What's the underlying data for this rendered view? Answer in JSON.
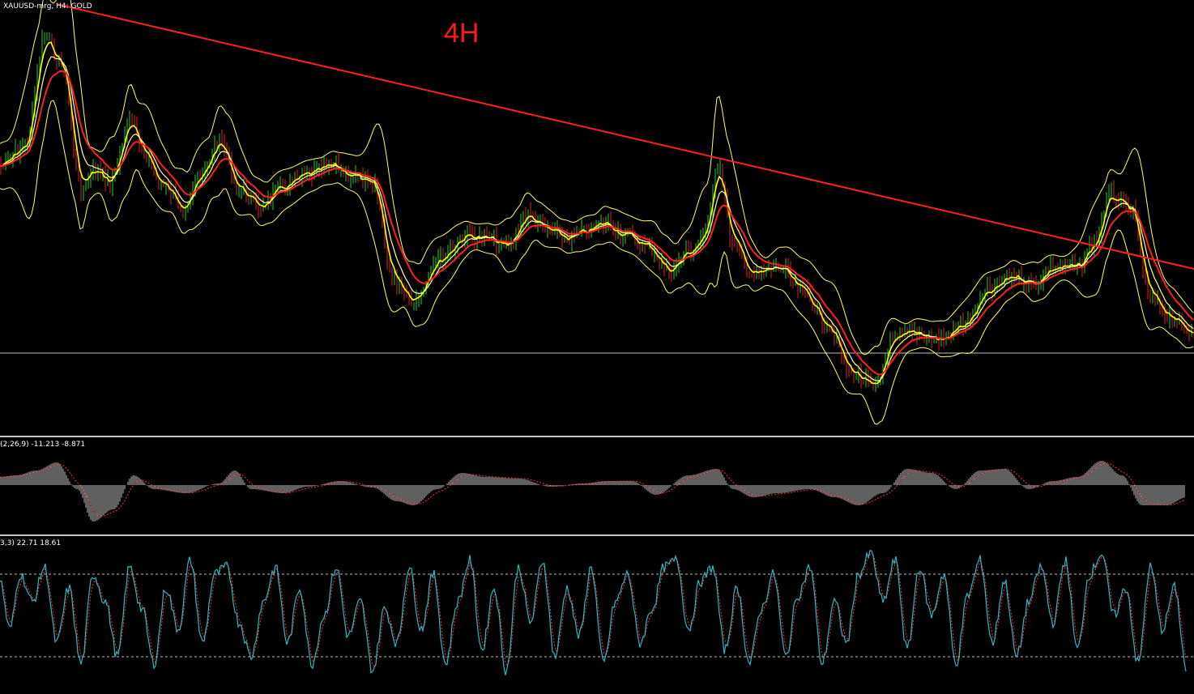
{
  "window": {
    "symbol_label": "XAUUSD-mrg, H4: GOLD"
  },
  "annotation": {
    "timeframe": "4H"
  },
  "colors": {
    "background": "#000000",
    "trendline": "#ff2020",
    "bands": "#ffff66",
    "fast_ma": "#ffff00",
    "mid_ma": "#ffffaa",
    "slow_ma": "#ff2020",
    "bull_bar": "#22cc22",
    "bear_bar": "#dd2222",
    "macd_hist": "#c0c0c0",
    "macd_signal": "#ff3333",
    "stoch_main": "#33b5c8",
    "stoch_signal": "#ff3333",
    "levels": "#c0c0c0"
  },
  "macd": {
    "label": "(2,26,9) -11.213 -8.871"
  },
  "stochastic": {
    "label": "3,3) 22.71 18.61"
  },
  "chart_data": [
    {
      "type": "line",
      "name": "price",
      "x": [
        0,
        30,
        55,
        75,
        100,
        115,
        135,
        160,
        175,
        200,
        225,
        245,
        270,
        295,
        320,
        350,
        380,
        410,
        430,
        460,
        485,
        510,
        540,
        575,
        600,
        625,
        650,
        675,
        700,
        725,
        745,
        770,
        800,
        825,
        850,
        870,
        885,
        905,
        930,
        960,
        990,
        1020,
        1050,
        1080,
        1100,
        1130,
        1160,
        1190,
        1220,
        1250,
        1275,
        1300,
        1330,
        1350,
        1370,
        1395,
        1420,
        1445,
        1465
      ],
      "values": [
        205,
        180,
        45,
        80,
        235,
        210,
        225,
        150,
        185,
        230,
        255,
        220,
        175,
        235,
        255,
        230,
        215,
        205,
        215,
        230,
        345,
        370,
        320,
        290,
        295,
        305,
        265,
        285,
        295,
        285,
        275,
        290,
        305,
        335,
        310,
        290,
        200,
        305,
        340,
        330,
        360,
        400,
        460,
        480,
        420,
        410,
        420,
        400,
        360,
        340,
        350,
        330,
        330,
        300,
        240,
        260,
        370,
        390,
        410
      ]
    },
    {
      "type": "line",
      "name": "trendline",
      "x": [
        70,
        1474
      ],
      "values": [
        5,
        332
      ]
    },
    {
      "type": "bar",
      "name": "macd",
      "label": "(2,26,9) -11.213 -8.871",
      "x": [
        0,
        20,
        45,
        70,
        95,
        115,
        140,
        165,
        190,
        230,
        270,
        290,
        310,
        350,
        380,
        420,
        460,
        490,
        510,
        540,
        570,
        600,
        640,
        680,
        720,
        750,
        780,
        810,
        850,
        885,
        905,
        930,
        960,
        1000,
        1030,
        1060,
        1090,
        1120,
        1150,
        1180,
        1210,
        1240,
        1270,
        1300,
        1330,
        1360,
        1385,
        1410,
        1440,
        1465
      ],
      "values": [
        10,
        12,
        18,
        28,
        -5,
        -45,
        -30,
        12,
        -5,
        -10,
        2,
        18,
        -5,
        -10,
        -2,
        5,
        -3,
        -20,
        -25,
        -5,
        15,
        10,
        8,
        -2,
        2,
        5,
        5,
        -12,
        12,
        20,
        -5,
        -15,
        -10,
        -5,
        -15,
        -25,
        -10,
        20,
        15,
        -5,
        18,
        20,
        -5,
        5,
        10,
        30,
        12,
        -25,
        -25,
        -15
      ]
    },
    {
      "type": "line",
      "name": "stochastic",
      "label": "3,3) 22.71 18.61",
      "ylim": [
        0,
        100
      ],
      "x": [
        0,
        12,
        25,
        40,
        55,
        70,
        85,
        100,
        115,
        130,
        145,
        160,
        175,
        190,
        205,
        220,
        235,
        250,
        265,
        280,
        295,
        310,
        325,
        340,
        355,
        370,
        385,
        400,
        415,
        430,
        445,
        460,
        475,
        490,
        505,
        520,
        535,
        550,
        565,
        580,
        595,
        610,
        625,
        640,
        655,
        670,
        685,
        700,
        715,
        730,
        745,
        760,
        775,
        790,
        805,
        820,
        835,
        850,
        865,
        880,
        895,
        910,
        925,
        940,
        955,
        970,
        985,
        1000,
        1015,
        1030,
        1045,
        1060,
        1075,
        1090,
        1105,
        1120,
        1135,
        1150,
        1165,
        1180,
        1195,
        1210,
        1225,
        1240,
        1255,
        1270,
        1285,
        1300,
        1315,
        1330,
        1345,
        1360,
        1375,
        1390,
        1405,
        1420,
        1435,
        1450,
        1465
      ],
      "values": [
        75,
        40,
        80,
        60,
        85,
        30,
        70,
        15,
        80,
        60,
        20,
        85,
        55,
        15,
        70,
        40,
        90,
        30,
        80,
        85,
        45,
        20,
        60,
        85,
        30,
        70,
        15,
        50,
        85,
        35,
        60,
        10,
        55,
        30,
        85,
        40,
        80,
        15,
        60,
        90,
        25,
        70,
        10,
        85,
        45,
        90,
        20,
        70,
        35,
        85,
        15,
        60,
        80,
        30,
        55,
        85,
        90,
        40,
        75,
        85,
        25,
        70,
        15,
        55,
        80,
        20,
        65,
        85,
        15,
        60,
        30,
        80,
        95,
        60,
        90,
        25,
        85,
        50,
        80,
        15,
        65,
        90,
        30,
        75,
        20,
        60,
        85,
        45,
        90,
        25,
        80,
        95,
        50,
        70,
        15,
        85,
        40,
        70,
        10
      ]
    }
  ]
}
